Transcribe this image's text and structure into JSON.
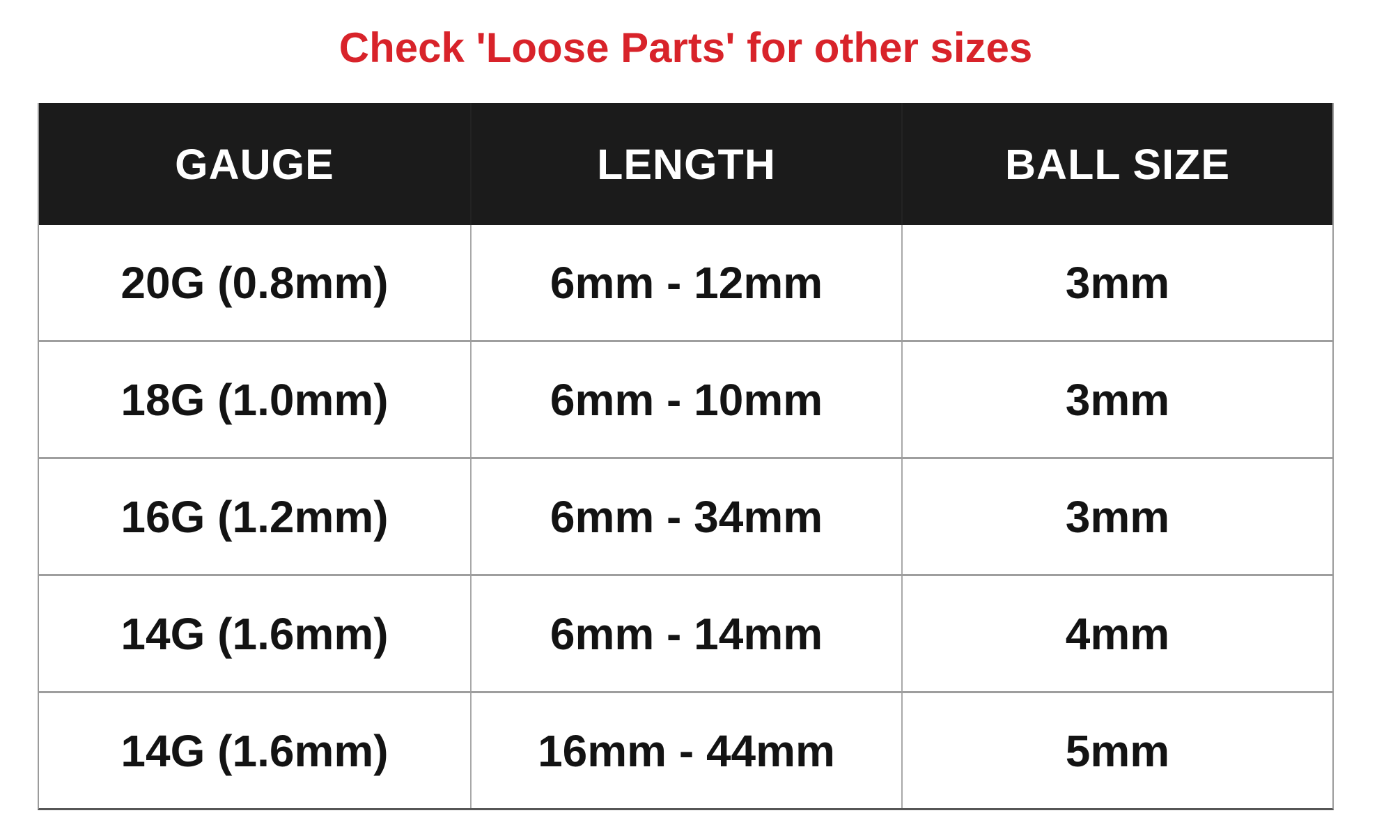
{
  "title": {
    "text": "Check 'Loose Parts' for other sizes",
    "color": "#d8232a"
  },
  "chart_data": {
    "type": "table",
    "title": "Check 'Loose Parts' for other sizes",
    "columns": [
      "GAUGE",
      "LENGTH",
      "BALL SIZE"
    ],
    "rows": [
      [
        "20G (0.8mm)",
        "6mm - 12mm",
        "3mm"
      ],
      [
        "18G (1.0mm)",
        "6mm - 10mm",
        "3mm"
      ],
      [
        "16G (1.2mm)",
        "6mm - 34mm",
        "3mm"
      ],
      [
        "14G (1.6mm)",
        "6mm - 14mm",
        "4mm"
      ],
      [
        "14G (1.6mm)",
        "16mm - 44mm",
        "5mm"
      ]
    ],
    "layout": {
      "header_background": "#1b1b1b",
      "header_text_color": "#ffffff",
      "body_text_color": "#131313",
      "divider_color": "#9e9e9e",
      "side_border_color": "#9b9b9b",
      "bottom_border_color": "#565656",
      "page_background": "#ffffff"
    }
  }
}
